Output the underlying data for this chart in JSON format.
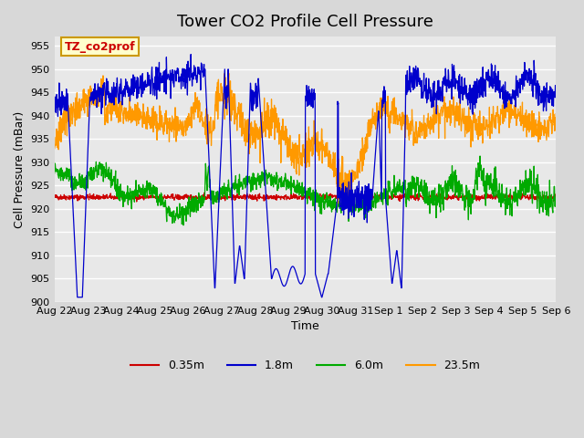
{
  "title": "Tower CO2 Profile Cell Pressure",
  "xlabel": "Time",
  "ylabel": "Cell Pressure (mBar)",
  "ylim": [
    900,
    957
  ],
  "yticks": [
    900,
    905,
    910,
    915,
    920,
    925,
    930,
    935,
    940,
    945,
    950,
    955
  ],
  "xtick_labels": [
    "Aug 22",
    "Aug 23",
    "Aug 24",
    "Aug 25",
    "Aug 26",
    "Aug 27",
    "Aug 28",
    "Aug 29",
    "Aug 30",
    "Aug 31",
    "Sep 1",
    "Sep 2",
    "Sep 3",
    "Sep 4",
    "Sep 5",
    "Sep 6"
  ],
  "legend_labels": [
    "0.35m",
    "1.8m",
    "6.0m",
    "23.5m"
  ],
  "legend_colors": [
    "#cc0000",
    "#0000cc",
    "#00aa00",
    "#ff9900"
  ],
  "annotation_text": "TZ_co2prof",
  "annotation_color": "#cc0000",
  "annotation_bg": "#ffffcc",
  "annotation_border": "#cc9900",
  "title_fontsize": 13,
  "axis_fontsize": 9,
  "tick_fontsize": 8
}
